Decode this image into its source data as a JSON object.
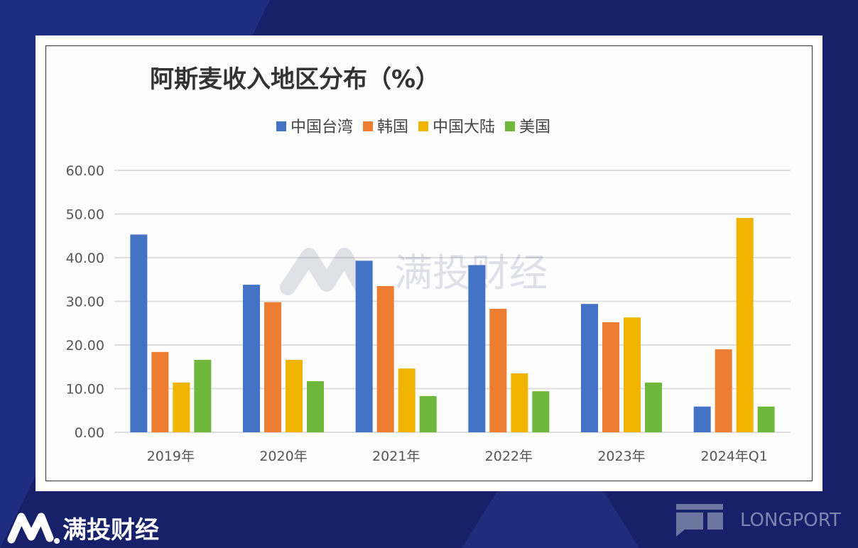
{
  "chart_data": {
    "type": "bar",
    "title": "阿斯麦收入地区分布（%）",
    "categories": [
      "2019年",
      "2020年",
      "2021年",
      "2022年",
      "2023年",
      "2024年Q1"
    ],
    "series": [
      {
        "name": "中国台湾",
        "color": "#4472c4",
        "values": [
          45.3,
          33.8,
          39.3,
          38.3,
          29.4,
          5.9
        ]
      },
      {
        "name": "韩国",
        "color": "#ed7d31",
        "values": [
          18.4,
          29.8,
          33.5,
          28.3,
          25.2,
          19.0
        ]
      },
      {
        "name": "中国大陆",
        "color": "#f0b400",
        "values": [
          11.4,
          16.6,
          14.6,
          13.5,
          26.3,
          49.1
        ]
      },
      {
        "name": "美国",
        "color": "#70b83c",
        "values": [
          16.6,
          11.7,
          8.3,
          9.4,
          11.4,
          5.9
        ]
      }
    ],
    "yticks": [
      "0.00",
      "10.00",
      "20.00",
      "30.00",
      "40.00",
      "50.00",
      "60.00"
    ],
    "ylim": [
      0,
      60
    ],
    "grid": true,
    "legend": "top"
  },
  "watermark": "满投财经",
  "footer": {
    "brand": "满投财经",
    "partner": "LONGPORT"
  }
}
